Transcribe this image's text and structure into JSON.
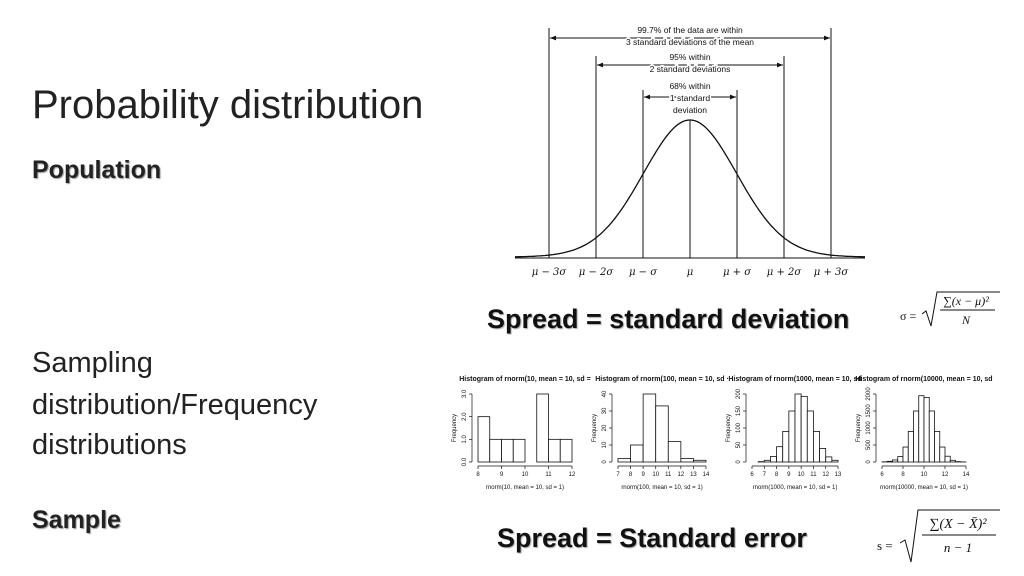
{
  "title": "Probability distribution",
  "population": "Population",
  "sampling": [
    "Sampling",
    "distribution/Frequency",
    "distributions"
  ],
  "sample": "Sample",
  "spread_sd": "Spread = standard deviation",
  "spread_se": "Spread = Standard error",
  "normal_curve": {
    "annotations": [
      [
        "99.7% of the data are within",
        "3 standard deviations of the mean"
      ],
      [
        "95% within",
        "2 standard deviations"
      ],
      [
        "68% within",
        "1 standard",
        "deviation"
      ]
    ],
    "x_labels": [
      "μ − 3σ",
      "μ − 2σ",
      "μ − σ",
      "μ",
      "μ + σ",
      "μ + 2σ",
      "μ + 3σ"
    ]
  },
  "formula_sd": {
    "lhs": "σ =",
    "numerator": "∑(x − μ)²",
    "denominator": "N"
  },
  "formula_se": {
    "lhs": "s =",
    "numerator": "∑(X − X̄)²",
    "denominator": "n − 1"
  },
  "histograms": [
    {
      "type": "histogram",
      "title": "Histogram of rnorm(10, mean = 10, sd =",
      "xlabel": "rnorm(10, mean = 10, sd = 1)",
      "ylabel": "Frequency",
      "bins": [
        8,
        8.5,
        9,
        9.5,
        10,
        10.5,
        11,
        11.5,
        12
      ],
      "counts": [
        2,
        1,
        1,
        1,
        0,
        3,
        1,
        1
      ],
      "xlim": [
        8,
        12
      ],
      "ylim": [
        0,
        3
      ],
      "xticks": [
        8,
        9,
        10,
        11,
        12
      ],
      "yticks": [
        {
          "value": 0,
          "label": "0.0"
        },
        {
          "value": 1,
          "label": "1.0"
        },
        {
          "value": 2,
          "label": "2.0"
        },
        {
          "value": 3,
          "label": "3.0"
        }
      ]
    },
    {
      "type": "histogram",
      "title": "Histogram of rnorm(100, mean = 10, sd ·",
      "xlabel": "rnorm(100, mean = 10, sd = 1)",
      "ylabel": "Frequency",
      "bins": [
        7,
        8,
        9,
        10,
        11,
        12,
        13,
        14
      ],
      "counts": [
        2,
        10,
        40,
        33,
        12,
        2,
        1
      ],
      "xlim": [
        7,
        14
      ],
      "ylim": [
        0,
        40
      ],
      "xticks": [
        7,
        8,
        9,
        10,
        11,
        12,
        13,
        14
      ],
      "yticks": [
        0,
        10,
        20,
        30,
        40
      ]
    },
    {
      "type": "histogram",
      "title": "Histogram of rnorm(1000, mean = 10, sd",
      "xlabel": "rnorm(1000, mean = 10, sd = 1)",
      "ylabel": "Frequency",
      "bins": [
        6.5,
        7,
        7.5,
        8,
        8.5,
        9,
        9.5,
        10,
        10.5,
        11,
        11.5,
        12,
        12.5,
        13
      ],
      "counts": [
        1,
        5,
        16,
        45,
        90,
        150,
        200,
        193,
        150,
        90,
        40,
        15,
        5
      ],
      "xlim": [
        6,
        13
      ],
      "ylim": [
        0,
        200
      ],
      "xticks": [
        6,
        7,
        8,
        9,
        10,
        11,
        12,
        13
      ],
      "yticks": [
        0,
        50,
        100,
        150,
        200
      ]
    },
    {
      "type": "histogram",
      "title": "Histogram of rnorm(10000, mean = 10, sd",
      "xlabel": "rnorm(10000, mean = 10, sd = 1)",
      "ylabel": "Frequency",
      "bins": [
        6,
        6.5,
        7,
        7.5,
        8,
        8.5,
        9,
        9.5,
        10,
        10.5,
        11,
        11.5,
        12,
        12.5,
        13,
        13.5,
        14
      ],
      "counts": [
        5,
        20,
        60,
        160,
        440,
        900,
        1500,
        1950,
        1900,
        1500,
        900,
        440,
        170,
        50,
        10,
        2
      ],
      "xlim": [
        6,
        14
      ],
      "ylim": [
        0,
        2000
      ],
      "xticks": [
        6,
        8,
        10,
        12,
        14
      ],
      "yticks": [
        0,
        500,
        1000,
        1500,
        2000
      ]
    }
  ]
}
